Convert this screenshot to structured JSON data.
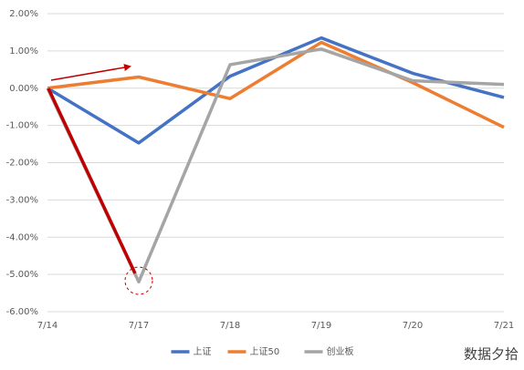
{
  "chart_data": {
    "type": "line",
    "categories": [
      "7/14",
      "7/17",
      "7/18",
      "7/19",
      "7/20",
      "7/21"
    ],
    "series": [
      {
        "name": "上证",
        "color": "#4472c4",
        "values": [
          0,
          -1.47,
          0.32,
          1.35,
          0.4,
          -0.25
        ]
      },
      {
        "name": "上证50",
        "color": "#ed7d31",
        "values": [
          0,
          0.3,
          -0.28,
          1.23,
          0.15,
          -1.05
        ]
      },
      {
        "name": "创业板",
        "color": "#a5a5a5",
        "values": [
          0,
          -5.2,
          0.63,
          1.05,
          0.2,
          0.1
        ]
      }
    ],
    "ylim": [
      -6,
      2
    ],
    "yticks": [
      {
        "value": 2,
        "label": "2.00%"
      },
      {
        "value": 1,
        "label": "1.00%"
      },
      {
        "value": 0,
        "label": "0.00%"
      },
      {
        "value": -1,
        "label": "-1.00%"
      },
      {
        "value": -2,
        "label": "-2.00%"
      },
      {
        "value": -3,
        "label": "-3.00%"
      },
      {
        "value": -4,
        "label": "-4.00%"
      },
      {
        "value": -5,
        "label": "-5.00%"
      },
      {
        "value": -6,
        "label": "-6.00%"
      }
    ],
    "grid": true,
    "legend": "bottom",
    "watermark": "数据夕拾"
  }
}
